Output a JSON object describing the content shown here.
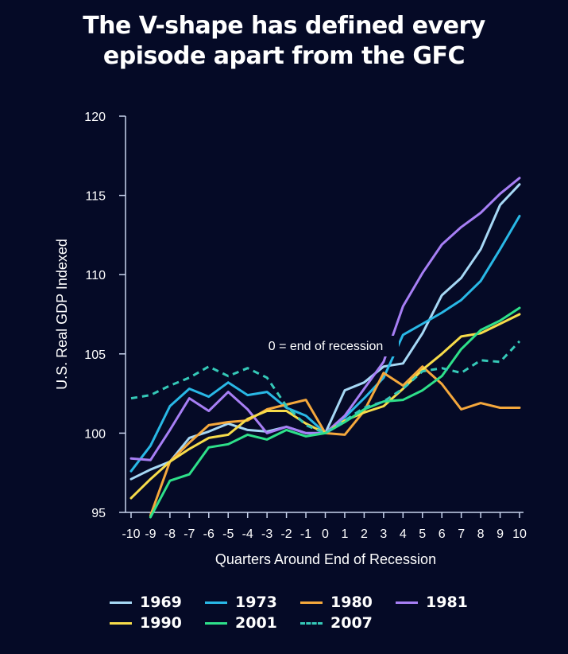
{
  "title_lines": [
    "The V-shape has defined every",
    "episode apart from the GFC"
  ],
  "chart_data": {
    "type": "line",
    "title": "The V-shape has defined every episode apart from the GFC",
    "xlabel": "Quarters Around End of Recession",
    "ylabel": "U.S. Real GDP Indexed",
    "xlim": [
      -10,
      10
    ],
    "ylim": [
      95,
      120
    ],
    "x_ticks": [
      "-10",
      "-9",
      "-8",
      "-7",
      "-6",
      "-5",
      "-4",
      "-3",
      "-2",
      "-1",
      "0",
      "1",
      "2",
      "3",
      "4",
      "5",
      "6",
      "7",
      "8",
      "9",
      "10"
    ],
    "y_ticks": [
      "95",
      "100",
      "105",
      "110",
      "115",
      "120"
    ],
    "annotation": "0 = end of recession",
    "legend_position": "bottom",
    "x": [
      -10,
      -9,
      -8,
      -7,
      -6,
      -5,
      -4,
      -3,
      -2,
      -1,
      0,
      1,
      2,
      3,
      4,
      5,
      6,
      7,
      8,
      9,
      10
    ],
    "series": [
      {
        "name": "1969",
        "color": "#a6d8f5",
        "dash": false,
        "values": [
          97.1,
          97.7,
          98.2,
          99.7,
          100.1,
          100.6,
          100.2,
          100.1,
          100.4,
          100.0,
          100.0,
          102.7,
          103.2,
          104.2,
          104.4,
          106.3,
          108.7,
          109.8,
          111.6,
          114.4,
          115.7
        ]
      },
      {
        "name": "1973",
        "color": "#29b8e6",
        "dash": false,
        "values": [
          97.6,
          99.2,
          101.7,
          102.8,
          102.3,
          103.2,
          102.4,
          102.6,
          101.6,
          101.1,
          100.0,
          101.0,
          102.2,
          103.5,
          106.2,
          106.9,
          107.6,
          108.4,
          109.6,
          111.6,
          113.7
        ]
      },
      {
        "name": "1980",
        "color": "#f5a83c",
        "dash": false,
        "values": [
          null,
          94.8,
          98.2,
          99.4,
          100.5,
          100.7,
          100.8,
          101.5,
          101.8,
          102.1,
          100.0,
          99.9,
          101.4,
          103.8,
          103.0,
          104.2,
          103.1,
          101.5,
          101.9,
          101.6,
          101.6
        ]
      },
      {
        "name": "1981",
        "color": "#a77ff5",
        "dash": false,
        "values": [
          98.4,
          98.3,
          100.2,
          102.2,
          101.4,
          102.6,
          101.5,
          100.0,
          100.4,
          100.0,
          100.0,
          101.1,
          102.8,
          104.5,
          108.0,
          110.1,
          111.9,
          113.0,
          113.9,
          115.1,
          116.1
        ]
      },
      {
        "name": "1990",
        "color": "#f7dc4a",
        "dash": false,
        "values": [
          95.9,
          97.1,
          98.2,
          99.0,
          99.7,
          99.9,
          100.9,
          101.4,
          101.4,
          100.6,
          100.0,
          100.8,
          101.3,
          101.7,
          102.8,
          104.0,
          105.0,
          106.1,
          106.3,
          106.9,
          107.5
        ]
      },
      {
        "name": "2001",
        "color": "#2ee08a",
        "dash": false,
        "values": [
          null,
          94.7,
          97.0,
          97.4,
          99.1,
          99.3,
          99.9,
          99.6,
          100.2,
          99.8,
          100.0,
          100.7,
          101.5,
          102.0,
          102.1,
          102.7,
          103.6,
          105.3,
          106.5,
          107.1,
          107.9
        ]
      },
      {
        "name": "2007",
        "color": "#35c9b8",
        "dash": true,
        "values": [
          102.2,
          102.4,
          103.0,
          103.5,
          104.2,
          103.6,
          104.1,
          103.5,
          101.7,
          100.5,
          100.0,
          100.8,
          101.6,
          102.0,
          102.8,
          103.9,
          104.1,
          103.8,
          104.6,
          104.5,
          105.8
        ]
      }
    ]
  }
}
